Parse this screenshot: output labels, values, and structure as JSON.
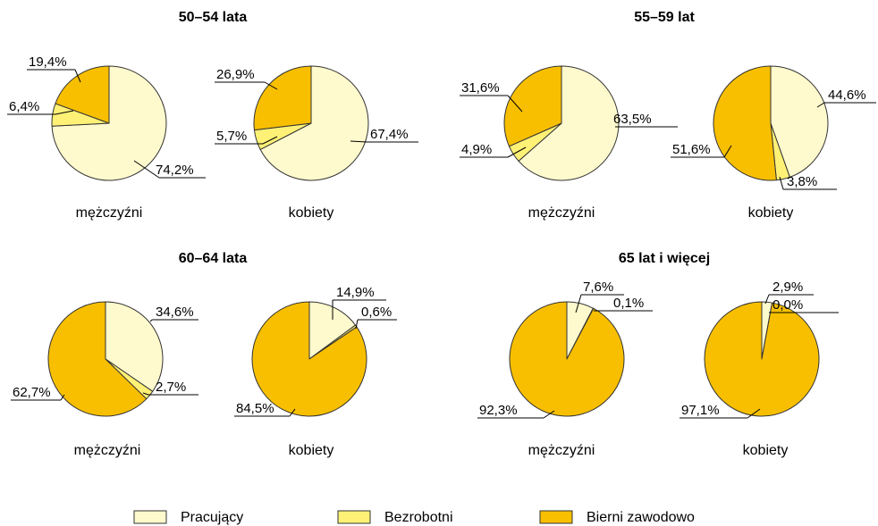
{
  "legend": [
    {
      "label": "Pracujący",
      "color": "#fffacd"
    },
    {
      "label": "Bezrobotni",
      "color": "#fff176"
    },
    {
      "label": "Bierni zawodowo",
      "color": "#f7bf00"
    }
  ],
  "chart_data": [
    {
      "type": "pie",
      "title": "50–54 lata",
      "caption": "mężczyźni",
      "categories": [
        "Pracujący",
        "Bezrobotni",
        "Bierni zawodowo"
      ],
      "values": [
        74.2,
        6.4,
        19.4
      ],
      "labels": [
        "74,2%",
        "6,4%",
        "19,4%"
      ]
    },
    {
      "type": "pie",
      "title": "50–54 lata",
      "caption": "kobiety",
      "categories": [
        "Pracujący",
        "Bezrobotni",
        "Bierni zawodowo"
      ],
      "values": [
        67.4,
        5.7,
        26.9
      ],
      "labels": [
        "67,4%",
        "5,7%",
        "26,9%"
      ]
    },
    {
      "type": "pie",
      "title": "55–59 lat",
      "caption": "mężczyźni",
      "categories": [
        "Pracujący",
        "Bezrobotni",
        "Bierni zawodowo"
      ],
      "values": [
        63.5,
        4.9,
        31.6
      ],
      "labels": [
        "63,5%",
        "4,9%",
        "31,6%"
      ]
    },
    {
      "type": "pie",
      "title": "55–59 lat",
      "caption": "kobiety",
      "categories": [
        "Pracujący",
        "Bezrobotni",
        "Bierni zawodowo"
      ],
      "values": [
        44.6,
        3.8,
        51.6
      ],
      "labels": [
        "44,6%",
        "3,8%",
        "51,6%"
      ]
    },
    {
      "type": "pie",
      "title": "60–64 lata",
      "caption": "mężczyźni",
      "categories": [
        "Pracujący",
        "Bezrobotni",
        "Bierni zawodowo"
      ],
      "values": [
        34.6,
        2.7,
        62.7
      ],
      "labels": [
        "34,6%",
        "2,7%",
        "62,7%"
      ]
    },
    {
      "type": "pie",
      "title": "60–64 lata",
      "caption": "kobiety",
      "categories": [
        "Pracujący",
        "Bezrobotni",
        "Bierni zawodowo"
      ],
      "values": [
        14.9,
        0.6,
        84.5
      ],
      "labels": [
        "14,9%",
        "0,6%",
        "84,5%"
      ]
    },
    {
      "type": "pie",
      "title": "65 lat i więcej",
      "caption": "mężczyźni",
      "categories": [
        "Pracujący",
        "Bezrobotni",
        "Bierni zawodowo"
      ],
      "values": [
        7.6,
        0.1,
        92.3
      ],
      "labels": [
        "7,6%",
        "0,1%",
        "92,3%"
      ]
    },
    {
      "type": "pie",
      "title": "65 lat i więcej",
      "caption": "kobiety",
      "categories": [
        "Pracujący",
        "Bezrobotni",
        "Bierni zawodowo"
      ],
      "values": [
        2.9,
        0.0,
        97.1
      ],
      "labels": [
        "2,9%",
        "0,0%",
        "97,1%"
      ]
    }
  ]
}
